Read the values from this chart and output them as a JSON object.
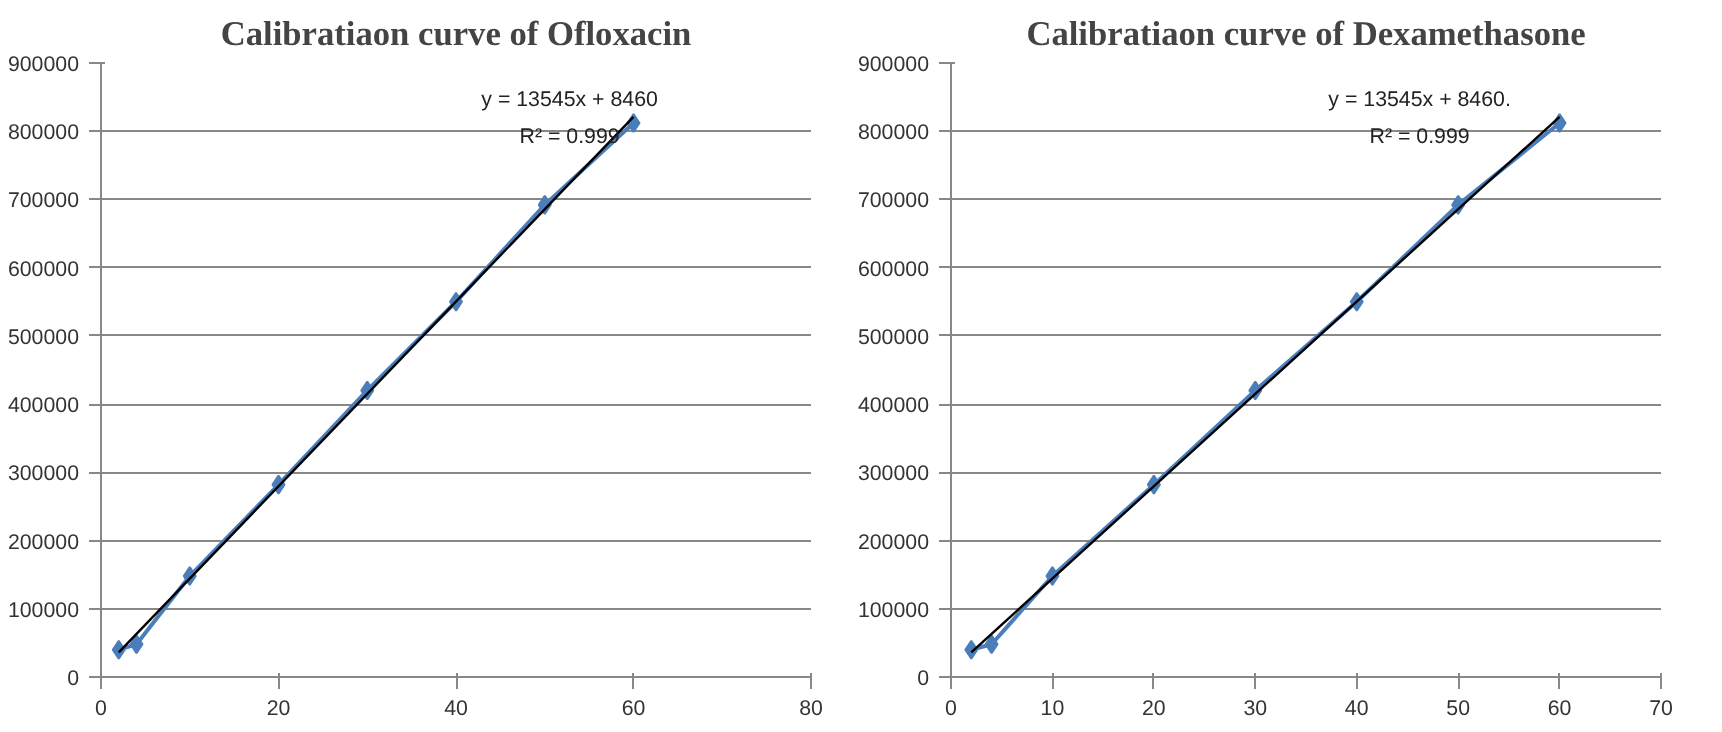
{
  "chart_data": [
    {
      "type": "line",
      "title": "Calibratiaon curve of Ofloxacin",
      "xlim": [
        0,
        80
      ],
      "xticks": [
        0,
        20,
        40,
        60,
        80
      ],
      "ylim": [
        0,
        900000
      ],
      "yticks": [
        0,
        100000,
        200000,
        300000,
        400000,
        500000,
        600000,
        700000,
        800000,
        900000
      ],
      "grid": "y",
      "series": [
        {
          "color": "#4a7ebb",
          "marker": "diamond",
          "x": [
            2,
            4,
            10,
            20,
            30,
            40,
            50,
            60
          ],
          "values": [
            40000,
            48000,
            148000,
            282000,
            420000,
            550000,
            692000,
            812000
          ]
        },
        {
          "color": "#000000",
          "marker": "none",
          "x": [
            2,
            60
          ],
          "values": [
            36000,
            821000
          ]
        }
      ],
      "annotations": [
        "y = 13545x + 8460",
        "R² = 0.999"
      ]
    },
    {
      "type": "line",
      "title": "Calibratiaon curve of Dexamethasone",
      "xlim": [
        0,
        70
      ],
      "xticks": [
        0,
        10,
        20,
        30,
        40,
        50,
        60,
        70
      ],
      "ylim": [
        0,
        900000
      ],
      "yticks": [
        0,
        100000,
        200000,
        300000,
        400000,
        500000,
        600000,
        700000,
        800000,
        900000
      ],
      "grid": "y",
      "series": [
        {
          "color": "#4a7ebb",
          "marker": "diamond",
          "x": [
            2,
            4,
            10,
            20,
            30,
            40,
            50,
            60
          ],
          "values": [
            40000,
            48000,
            148000,
            282000,
            420000,
            550000,
            692000,
            812000
          ]
        },
        {
          "color": "#000000",
          "marker": "none",
          "x": [
            2,
            60
          ],
          "values": [
            36000,
            821000
          ]
        }
      ],
      "annotations": [
        "y = 13545x + 8460.",
        "R² = 0.999"
      ]
    }
  ]
}
